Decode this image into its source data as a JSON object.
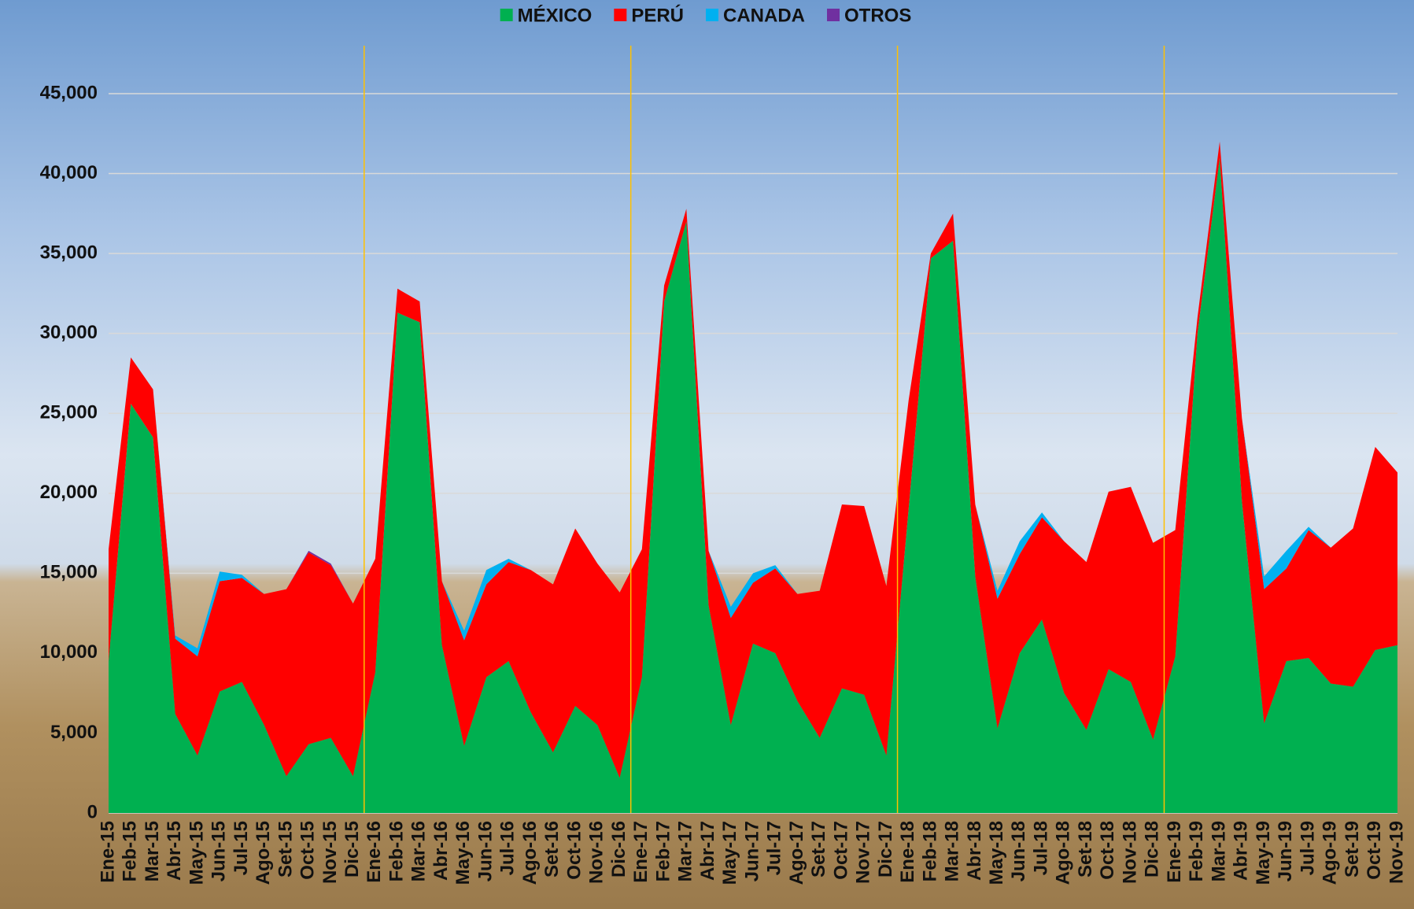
{
  "chart_data": {
    "type": "stacked-area",
    "categories": [
      "Ene-15",
      "Feb-15",
      "Mar-15",
      "Abr-15",
      "May-15",
      "Jun-15",
      "Jul-15",
      "Ago-15",
      "Set-15",
      "Oct-15",
      "Nov-15",
      "Dic-15",
      "Ene-16",
      "Feb-16",
      "Mar-16",
      "Abr-16",
      "May-16",
      "Jun-16",
      "Jul-16",
      "Ago-16",
      "Set-16",
      "Oct-16",
      "Nov-16",
      "Dic-16",
      "Ene-17",
      "Feb-17",
      "Mar-17",
      "Abr-17",
      "May-17",
      "Jun-17",
      "Jul-17",
      "Ago-17",
      "Set-17",
      "Oct-17",
      "Nov-17",
      "Dic-17",
      "Ene-18",
      "Feb-18",
      "Mar-18",
      "Abr-18",
      "May-18",
      "Jun-18",
      "Jul-18",
      "Ago-18",
      "Set-18",
      "Oct-18",
      "Nov-18",
      "Dic-18",
      "Ene-19",
      "Feb-19",
      "Mar-19",
      "Abr-19",
      "May-19",
      "Jun-19",
      "Jul-19",
      "Ago-19",
      "Set-19",
      "Oct-19",
      "Nov-19"
    ],
    "series": [
      {
        "name": "MÉXICO",
        "color": "#00b050",
        "values": [
          9500,
          25600,
          23500,
          6200,
          3600,
          7600,
          8200,
          5500,
          2300,
          4300,
          4700,
          2300,
          8800,
          31300,
          30700,
          10500,
          4200,
          8500,
          9500,
          6300,
          3800,
          6700,
          5500,
          2200,
          8500,
          32000,
          37000,
          13000,
          5500,
          10600,
          10000,
          7000,
          4700,
          7800,
          7400,
          3600,
          19000,
          34700,
          35800,
          14800,
          5300,
          10000,
          12100,
          7500,
          5200,
          9000,
          8200,
          4600,
          9800,
          30000,
          41000,
          19500,
          5600,
          9500,
          9700,
          8100,
          7900,
          10200,
          10500
        ]
      },
      {
        "name": "PERÚ",
        "color": "#ff0000",
        "values": [
          7000,
          2900,
          3000,
          4700,
          6200,
          6900,
          6500,
          8200,
          11700,
          12000,
          10800,
          10800,
          7100,
          1500,
          1300,
          4000,
          6600,
          5800,
          6200,
          8900,
          10500,
          11100,
          10100,
          11600,
          8000,
          1000,
          800,
          3400,
          6700,
          3800,
          5300,
          6700,
          9200,
          11500,
          11800,
          10600,
          6800,
          300,
          1700,
          4500,
          8100,
          6200,
          6400,
          9500,
          10500,
          11100,
          12200,
          12300,
          7900,
          1000,
          1000,
          5200,
          8400,
          5800,
          8000,
          8500,
          9900,
          12700,
          10800
        ]
      },
      {
        "name": "CANADA",
        "color": "#00b0f0",
        "values": [
          0,
          0,
          0,
          200,
          500,
          600,
          200,
          0,
          0,
          0,
          0,
          0,
          0,
          0,
          0,
          0,
          600,
          900,
          200,
          0,
          0,
          0,
          0,
          0,
          0,
          0,
          0,
          0,
          700,
          600,
          200,
          0,
          0,
          0,
          0,
          0,
          0,
          0,
          0,
          0,
          500,
          800,
          300,
          0,
          0,
          0,
          0,
          0,
          0,
          0,
          0,
          0,
          800,
          1100,
          200,
          0,
          0,
          0,
          0
        ]
      },
      {
        "name": "OTROS",
        "color": "#7030a0",
        "values": [
          0,
          0,
          0,
          0,
          0,
          0,
          0,
          0,
          0,
          100,
          100,
          0,
          0,
          0,
          0,
          0,
          0,
          0,
          0,
          0,
          0,
          0,
          0,
          0,
          0,
          0,
          0,
          0,
          0,
          0,
          0,
          0,
          0,
          0,
          0,
          0,
          0,
          0,
          0,
          0,
          0,
          0,
          0,
          0,
          0,
          0,
          0,
          0,
          0,
          0,
          0,
          0,
          0,
          0,
          0,
          0,
          0,
          0,
          0
        ]
      }
    ],
    "ylim": [
      0,
      45000
    ],
    "yticks": [
      0,
      {
        "value": 5000,
        "label": "5,000"
      },
      {
        "value": 10000,
        "label": "10,000"
      },
      {
        "value": 15000,
        "label": "15,000"
      },
      {
        "value": 20000,
        "label": "20,000"
      },
      {
        "value": 25000,
        "label": "25,000"
      },
      {
        "value": 30000,
        "label": "30,000"
      },
      {
        "value": 35000,
        "label": "35,000"
      },
      {
        "value": 40000,
        "label": "40,000"
      },
      {
        "value": 45000,
        "label": "45,000"
      }
    ],
    "grid": true,
    "legend": "top"
  }
}
